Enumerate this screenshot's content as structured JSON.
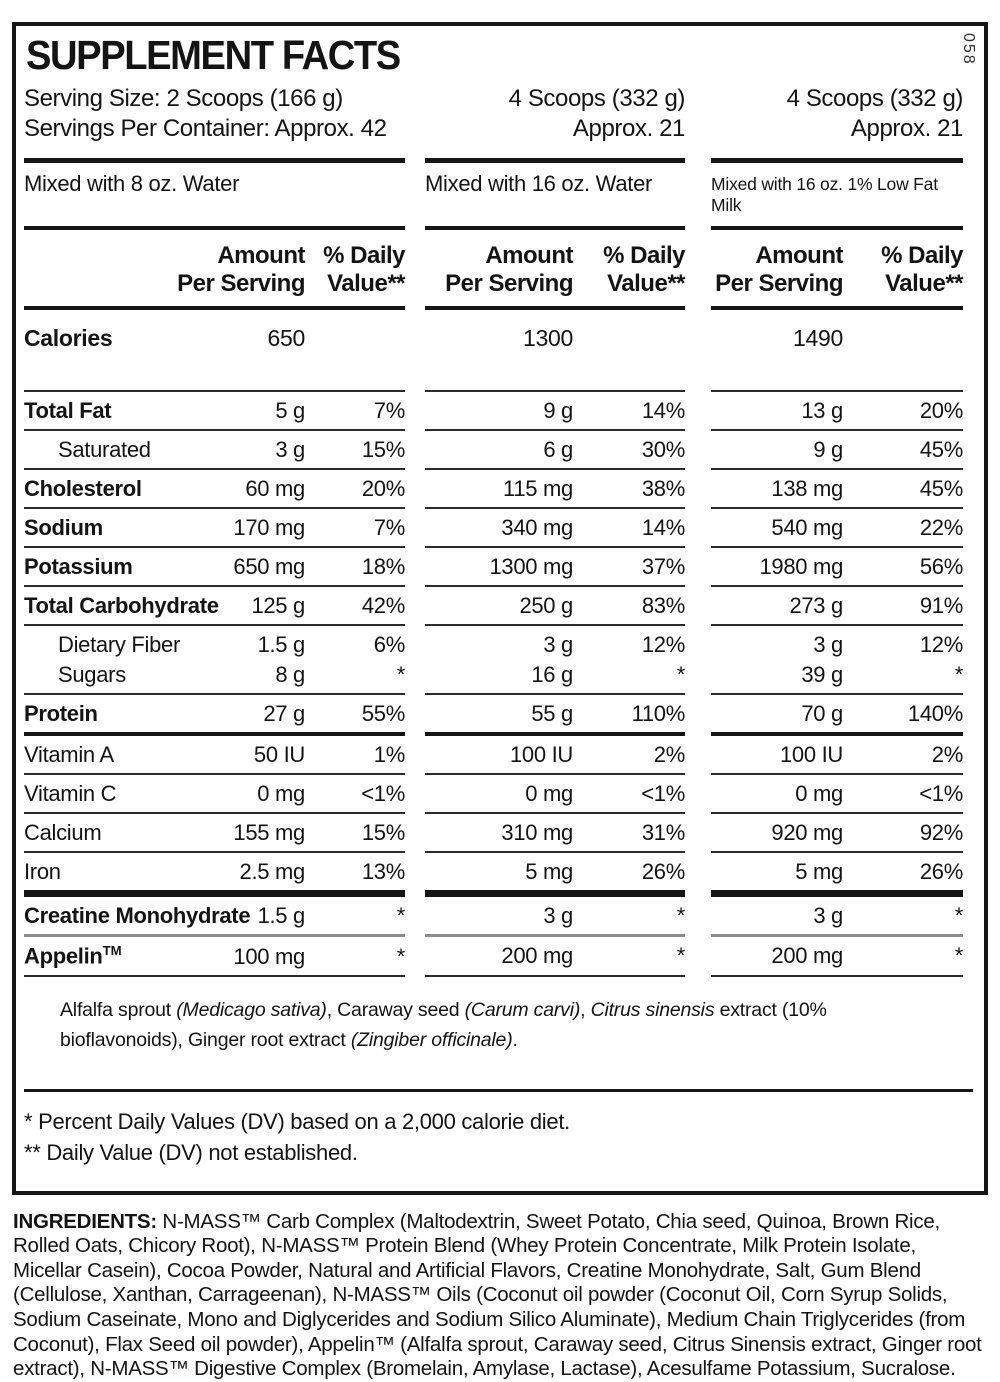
{
  "doc_code": "058",
  "title": "SUPPLEMENT FACTS",
  "ink_color": "#141414",
  "gray_rule_color": "#8c8c8c",
  "serving": {
    "col1_line1": "Serving Size: 2 Scoops (166 g)",
    "col1_line2": "Servings Per Container: Approx. 42",
    "col2_line1": "4 Scoops (332 g)",
    "col2_line2": "Approx. 21",
    "col3_line1": "4 Scoops (332 g)",
    "col3_line2": "Approx. 21"
  },
  "mixed": {
    "col1": "Mixed with 8 oz. Water",
    "col2": "Mixed with 16 oz. Water",
    "col3": "Mixed with 16 oz. 1% Low Fat Milk"
  },
  "column_headers": {
    "amount_line1": "Amount",
    "amount_line2": "Per Serving",
    "dv_line1": "% Daily",
    "dv_line2": "Value**"
  },
  "calories": {
    "label": "Calories",
    "values": [
      "650",
      "1300",
      "1490"
    ]
  },
  "rows": [
    {
      "label": "Total Fat",
      "bold": true,
      "indent": false,
      "cols": [
        [
          "5 g",
          "7%"
        ],
        [
          "9 g",
          "14%"
        ],
        [
          "13 g",
          "20%"
        ]
      ],
      "sep": "thin"
    },
    {
      "label": "Saturated",
      "bold": false,
      "indent": true,
      "cols": [
        [
          "3 g",
          "15%"
        ],
        [
          "6 g",
          "30%"
        ],
        [
          "9 g",
          "45%"
        ]
      ],
      "sep": "thin"
    },
    {
      "label": "Cholesterol",
      "bold": true,
      "indent": false,
      "cols": [
        [
          "60 mg",
          "20%"
        ],
        [
          "115 mg",
          "38%"
        ],
        [
          "138 mg",
          "45%"
        ]
      ],
      "sep": "thin"
    },
    {
      "label": "Sodium",
      "bold": true,
      "indent": false,
      "cols": [
        [
          "170 mg",
          "7%"
        ],
        [
          "340 mg",
          "14%"
        ],
        [
          "540 mg",
          "22%"
        ]
      ],
      "sep": "thin"
    },
    {
      "label": "Potassium",
      "bold": true,
      "indent": false,
      "cols": [
        [
          "650 mg",
          "18%"
        ],
        [
          "1300 mg",
          "37%"
        ],
        [
          "1980 mg",
          "56%"
        ]
      ],
      "sep": "thin"
    },
    {
      "label": "Total Carbohydrate",
      "bold": true,
      "indent": false,
      "cols": [
        [
          "125 g",
          "42%"
        ],
        [
          "250 g",
          "83%"
        ],
        [
          "273 g",
          "91%"
        ]
      ],
      "sep": "thin"
    },
    {
      "label": "Dietary Fiber",
      "bold": false,
      "indent": true,
      "cols": [
        [
          "1.5 g",
          "6%"
        ],
        [
          "3 g",
          "12%"
        ],
        [
          "3 g",
          "12%"
        ]
      ],
      "sep": "none"
    },
    {
      "label": "Sugars",
      "bold": false,
      "indent": true,
      "cols": [
        [
          "8 g",
          "*"
        ],
        [
          "16 g",
          "*"
        ],
        [
          "39 g",
          "*"
        ]
      ],
      "sep": "thin"
    },
    {
      "label": "Protein",
      "bold": true,
      "indent": false,
      "cols": [
        [
          "27 g",
          "55%"
        ],
        [
          "55 g",
          "110%"
        ],
        [
          "70 g",
          "140%"
        ]
      ],
      "sep": "medium"
    },
    {
      "label": "Vitamin A",
      "bold": false,
      "indent": false,
      "cols": [
        [
          "50 IU",
          "1%"
        ],
        [
          "100 IU",
          "2%"
        ],
        [
          "100 IU",
          "2%"
        ]
      ],
      "sep": "thin"
    },
    {
      "label": "Vitamin C",
      "bold": false,
      "indent": false,
      "cols": [
        [
          "0 mg",
          "<1%"
        ],
        [
          "0 mg",
          "<1%"
        ],
        [
          "0 mg",
          "<1%"
        ]
      ],
      "sep": "thin"
    },
    {
      "label": "Calcium",
      "bold": false,
      "indent": false,
      "cols": [
        [
          "155 mg",
          "15%"
        ],
        [
          "310 mg",
          "31%"
        ],
        [
          "920 mg",
          "92%"
        ]
      ],
      "sep": "thin"
    },
    {
      "label": "Iron",
      "bold": false,
      "indent": false,
      "cols": [
        [
          "2.5 mg",
          "13%"
        ],
        [
          "5 mg",
          "26%"
        ],
        [
          "5 mg",
          "26%"
        ]
      ],
      "sep": "xthick"
    },
    {
      "label": "Creatine Monohydrate",
      "bold": true,
      "indent": false,
      "cols": [
        [
          "1.5 g",
          "*"
        ],
        [
          "3 g",
          "*"
        ],
        [
          "3 g",
          "*"
        ]
      ],
      "sep": "gray"
    },
    {
      "label": "Appelin",
      "tm": "TM",
      "bold": true,
      "indent": false,
      "cols": [
        [
          "100 mg",
          "*"
        ],
        [
          "200 mg",
          "*"
        ],
        [
          "200 mg",
          "*"
        ]
      ],
      "sep": "thin"
    }
  ],
  "botanical_note": {
    "segments": [
      {
        "text": "Alfalfa sprout ",
        "italic": false
      },
      {
        "text": "(Medicago sativa)",
        "italic": true
      },
      {
        "text": ", Caraway seed ",
        "italic": false
      },
      {
        "text": "(Carum carvi)",
        "italic": true
      },
      {
        "text": ", ",
        "italic": false
      },
      {
        "text": "Citrus sinensis",
        "italic": true
      },
      {
        "text": " extract (10% bioflavonoids), Ginger root extract ",
        "italic": false
      },
      {
        "text": "(Zingiber officinale)",
        "italic": true
      },
      {
        "text": ".",
        "italic": false
      }
    ]
  },
  "footnotes": {
    "line1": "* Percent Daily Values (DV) based on a 2,000 calorie diet.",
    "line2": "** Daily Value (DV) not established."
  },
  "ingredients": {
    "label": "INGREDIENTS:",
    "text": " N-MASS™ Carb Complex (Maltodextrin, Sweet Potato, Chia seed, Quinoa, Brown Rice, Rolled Oats, Chicory Root), N-MASS™ Protein Blend (Whey Protein Concentrate, Milk Protein Isolate, Micellar Casein), Cocoa Powder, Natural and Artificial Flavors, Creatine Monohydrate, Salt, Gum Blend (Cellulose, Xanthan, Carrageenan), N-MASS™ Oils (Coconut oil powder (Coconut Oil, Corn Syrup Solids, Sodium Caseinate, Mono and Diglycerides and Sodium Silico Aluminate), Medium Chain Triglycerides (from Coconut), Flax Seed oil powder), Appelin™ (Alfalfa sprout, Caraway seed, Citrus Sinensis extract, Ginger root extract), N-MASS™ Digestive Complex (Bromelain, Amylase, Lactase), Acesulfame Potassium, Sucralose."
  }
}
